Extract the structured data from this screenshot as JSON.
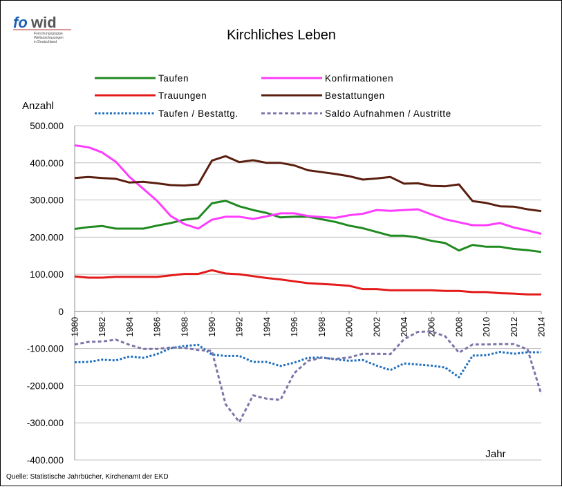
{
  "logo": {
    "mark_fo": "fo",
    "mark_wid": "wid",
    "tagline": [
      "Forschungsgruppe",
      "Weltanschauungen",
      "in Deutschland"
    ]
  },
  "colors": {
    "Taufen": "#1f8a1f",
    "Konfirmationen": "#ff3cff",
    "Trauungen": "#e31a1a",
    "Bestattungen": "#5a1e0f",
    "Taufen / Bestattg.": "#1f6fbf",
    "Saldo Aufnahmen / Austritte": "#7a76a8"
  },
  "chart_data": {
    "type": "line",
    "title": "Kirchliches Leben",
    "ylabel": "Anzahl",
    "xlabel": "Jahr",
    "source": "Quelle: Statistische Jahrbücher, Kirchenamt der EKD",
    "ylim": [
      -400000,
      500000
    ],
    "yticks": [
      500000,
      400000,
      300000,
      200000,
      100000,
      0,
      -100000,
      -200000,
      -300000,
      -400000
    ],
    "ytick_labels": [
      "500.000",
      "400.000",
      "300.000",
      "200.000",
      "100.000",
      "0",
      "-100.000",
      "-200.000",
      "-300.000",
      "-400.000"
    ],
    "xlim": [
      1980,
      2014
    ],
    "xtick_labels": [
      "1980",
      "1982",
      "1984",
      "1986",
      "1988",
      "1990",
      "1992",
      "1994",
      "1996",
      "1998",
      "2000",
      "2002",
      "2004",
      "2006",
      "2008",
      "2010",
      "2012",
      "2014"
    ],
    "grid": "horizontal",
    "legend": "top",
    "x": [
      1980,
      1981,
      1982,
      1983,
      1984,
      1985,
      1986,
      1987,
      1988,
      1989,
      1990,
      1991,
      1992,
      1993,
      1994,
      1995,
      1996,
      1997,
      1998,
      1999,
      2000,
      2001,
      2002,
      2003,
      2004,
      2005,
      2006,
      2007,
      2008,
      2009,
      2010,
      2011,
      2012,
      2013,
      2014
    ],
    "series": [
      {
        "name": "Taufen",
        "style": "solid",
        "values": [
          222000,
          227000,
          230000,
          223000,
          223000,
          223000,
          231000,
          238000,
          247000,
          251000,
          291000,
          298000,
          283000,
          273000,
          265000,
          253000,
          255000,
          255000,
          248000,
          241000,
          231000,
          224000,
          214000,
          204000,
          204000,
          199000,
          190000,
          184000,
          164000,
          179000,
          174000,
          174000,
          168000,
          165000,
          160000
        ]
      },
      {
        "name": "Konfirmationen",
        "style": "solid",
        "values": [
          447000,
          442000,
          428000,
          403000,
          362000,
          330000,
          298000,
          257000,
          235000,
          223000,
          247000,
          255000,
          255000,
          249000,
          256000,
          264000,
          264000,
          257000,
          254000,
          252000,
          259000,
          263000,
          273000,
          271000,
          273000,
          275000,
          261000,
          248000,
          240000,
          232000,
          232000,
          238000,
          226000,
          218000,
          209000
        ]
      },
      {
        "name": "Trauungen",
        "style": "solid",
        "values": [
          94000,
          91000,
          91000,
          93000,
          93000,
          93000,
          93000,
          97000,
          101000,
          101000,
          111000,
          102000,
          100000,
          95000,
          90000,
          86000,
          81000,
          76000,
          74000,
          72000,
          69000,
          60000,
          60000,
          57000,
          57000,
          57000,
          57000,
          55000,
          55000,
          52000,
          52000,
          49000,
          48000,
          46000,
          46000
        ]
      },
      {
        "name": "Bestattungen",
        "style": "solid",
        "values": [
          359000,
          362000,
          359000,
          357000,
          347000,
          349000,
          345000,
          340000,
          339000,
          342000,
          406000,
          418000,
          402000,
          407000,
          400000,
          400000,
          393000,
          380000,
          375000,
          370000,
          364000,
          355000,
          358000,
          362000,
          344000,
          345000,
          338000,
          337000,
          342000,
          297000,
          292000,
          283000,
          282000,
          275000,
          270000
        ]
      },
      {
        "name": "Taufen / Bestattg.",
        "style": "dotted",
        "values": [
          -137000,
          -136000,
          -130000,
          -132000,
          -121000,
          -125000,
          -115000,
          -99000,
          -93000,
          -90000,
          -116000,
          -120000,
          -120000,
          -136000,
          -136000,
          -147000,
          -138000,
          -125000,
          -124000,
          -129000,
          -133000,
          -131000,
          -146000,
          -158000,
          -140000,
          -143000,
          -146000,
          -151000,
          -177000,
          -119000,
          -118000,
          -109000,
          -114000,
          -110000,
          -110000
        ]
      },
      {
        "name": "Saldo Aufnahmen / Austritte",
        "style": "dashed",
        "values": [
          -89000,
          -82000,
          -81000,
          -76000,
          -90000,
          -101000,
          -101000,
          -97000,
          -98000,
          -104000,
          -106000,
          -250000,
          -298000,
          -226000,
          -235000,
          -238000,
          -166000,
          -133000,
          -125000,
          -128000,
          -124000,
          -114000,
          -114000,
          -115000,
          -75000,
          -55000,
          -54000,
          -67000,
          -111000,
          -89000,
          -89000,
          -88000,
          -88000,
          -102000,
          -223000
        ]
      }
    ]
  }
}
